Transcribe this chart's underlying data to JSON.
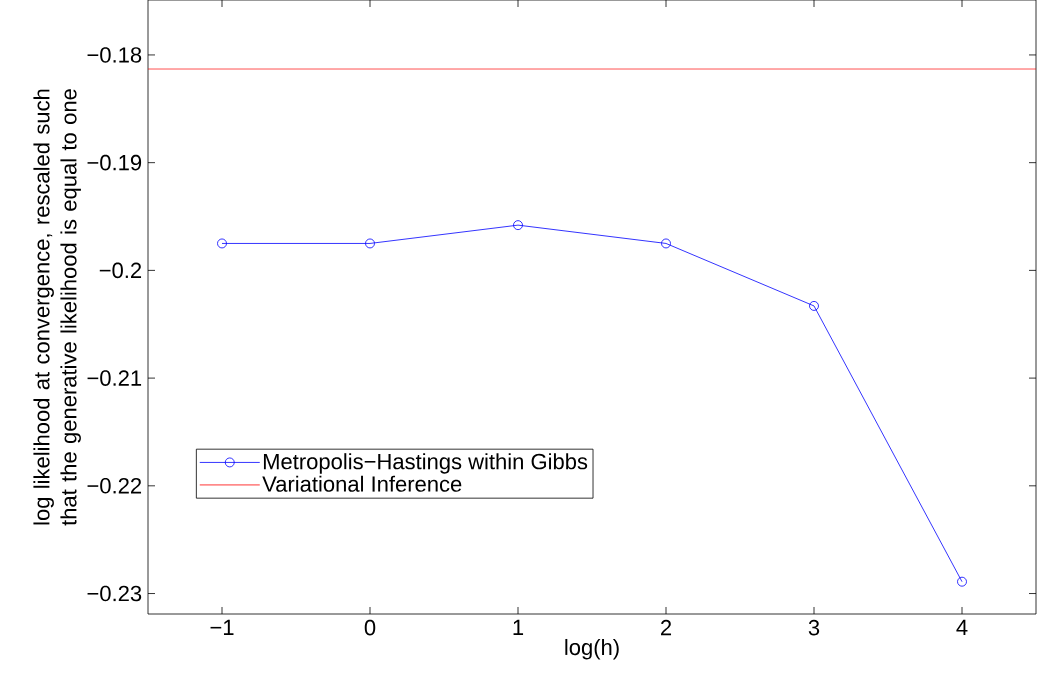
{
  "chart_data": {
    "type": "line",
    "xlabel": "log(h)",
    "ylabel": "log likelihood at convergence, rescaled such that the generative likelihood is equal to one",
    "x": [
      -1,
      0,
      1,
      2,
      3,
      4
    ],
    "series": [
      {
        "name": "Metropolis−Hastings within Gibbs",
        "color": "#0000ff",
        "marker": "circle",
        "values": [
          -0.1975,
          -0.1975,
          -0.1958,
          -0.1975,
          -0.2033,
          -0.2289
        ]
      }
    ],
    "ref_lines": [
      {
        "axis": "y",
        "value": -0.1813,
        "label": "Variational Inference",
        "color": "#ff0000",
        "line_style": "solid"
      }
    ],
    "xlim": [
      -1.5,
      4.5
    ],
    "ylim": [
      -0.2319,
      -0.1749
    ],
    "xticks": [
      {
        "value": -1,
        "label": "−1"
      },
      0,
      1,
      2,
      3,
      4
    ],
    "yticks": [
      {
        "value": -0.23,
        "label": "−0.23"
      },
      {
        "value": -0.22,
        "label": "−0.22"
      },
      {
        "value": -0.21,
        "label": "−0.21"
      },
      {
        "value": -0.2,
        "label": "−0.2"
      },
      {
        "value": -0.19,
        "label": "−0.19"
      },
      {
        "value": -0.18,
        "label": "−0.18"
      }
    ],
    "grid": false,
    "legend": "bottom left",
    "line_style": "solid"
  }
}
